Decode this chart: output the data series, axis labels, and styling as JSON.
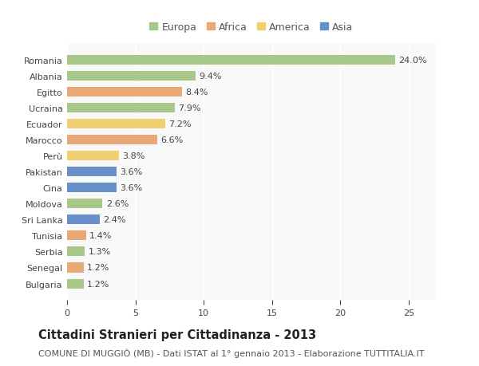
{
  "countries": [
    "Romania",
    "Albania",
    "Egitto",
    "Ucraina",
    "Ecuador",
    "Marocco",
    "Perù",
    "Pakistan",
    "Cina",
    "Moldova",
    "Sri Lanka",
    "Tunisia",
    "Serbia",
    "Senegal",
    "Bulgaria"
  ],
  "values": [
    24.0,
    9.4,
    8.4,
    7.9,
    7.2,
    6.6,
    3.8,
    3.6,
    3.6,
    2.6,
    2.4,
    1.4,
    1.3,
    1.2,
    1.2
  ],
  "continents": [
    "Europa",
    "Europa",
    "Africa",
    "Europa",
    "America",
    "Africa",
    "America",
    "Asia",
    "Asia",
    "Europa",
    "Asia",
    "Africa",
    "Europa",
    "Africa",
    "Europa"
  ],
  "continent_colors": {
    "Europa": "#a8c88a",
    "Africa": "#e8a878",
    "America": "#f0d070",
    "Asia": "#6890c8"
  },
  "legend_order": [
    "Europa",
    "Africa",
    "America",
    "Asia"
  ],
  "title": "Cittadini Stranieri per Cittadinanza - 2013",
  "subtitle": "COMUNE DI MUGGIÒ (MB) - Dati ISTAT al 1° gennaio 2013 - Elaborazione TUTTITALIA.IT",
  "xlim": [
    0,
    27
  ],
  "xticks": [
    0,
    5,
    10,
    15,
    20,
    25
  ],
  "background_color": "#ffffff",
  "plot_bg_color": "#f8f8f8",
  "bar_height": 0.6,
  "title_fontsize": 10.5,
  "subtitle_fontsize": 8,
  "label_fontsize": 8,
  "tick_fontsize": 8,
  "legend_fontsize": 9
}
